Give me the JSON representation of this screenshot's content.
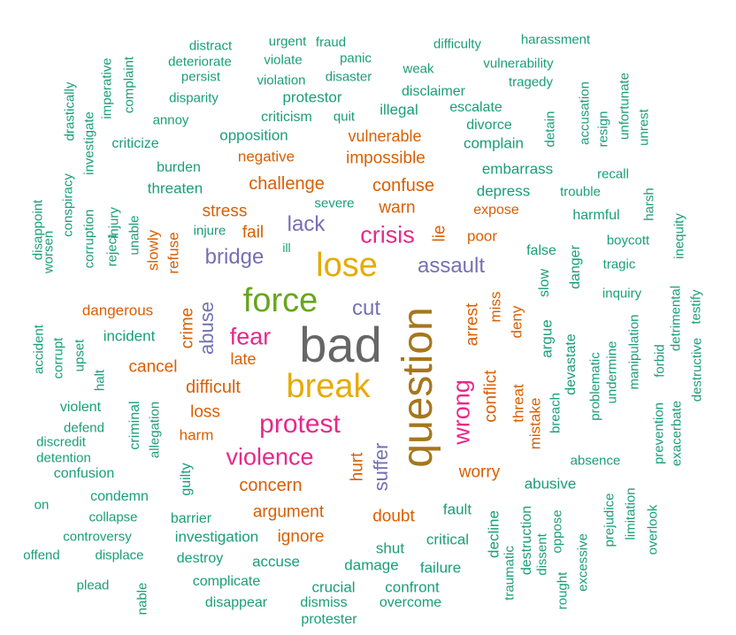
{
  "colors": {
    "green": "#1b9e77",
    "orange": "#d95f02",
    "purple": "#7570b3",
    "pink": "#e7298a",
    "lime": "#66a61e",
    "gold": "#e6ab02",
    "brown": "#a6761d",
    "gray": "#666666"
  },
  "words": [
    {
      "text": "bad",
      "color": "gray"
    },
    {
      "text": "question",
      "color": "brown"
    },
    {
      "text": "break",
      "color": "gold"
    },
    {
      "text": "force",
      "color": "lime"
    },
    {
      "text": "lose",
      "color": "gold"
    },
    {
      "text": "protest",
      "color": "pink"
    },
    {
      "text": "violence",
      "color": "pink"
    },
    {
      "text": "crisis",
      "color": "pink"
    },
    {
      "text": "fear",
      "color": "pink"
    },
    {
      "text": "wrong",
      "color": "pink"
    },
    {
      "text": "assault",
      "color": "purple"
    },
    {
      "text": "lack",
      "color": "purple"
    },
    {
      "text": "bridge",
      "color": "purple"
    },
    {
      "text": "cut",
      "color": "purple"
    },
    {
      "text": "abuse",
      "color": "purple"
    },
    {
      "text": "suffer",
      "color": "purple"
    },
    {
      "text": "lie",
      "color": "orange"
    },
    {
      "text": "arrest",
      "color": "orange"
    },
    {
      "text": "conflict",
      "color": "orange"
    },
    {
      "text": "hurt",
      "color": "orange"
    },
    {
      "text": "challenge",
      "color": "orange"
    },
    {
      "text": "confuse",
      "color": "orange"
    },
    {
      "text": "concern",
      "color": "orange"
    },
    {
      "text": "argument",
      "color": "orange"
    },
    {
      "text": "difficult",
      "color": "orange"
    },
    {
      "text": "worry",
      "color": "orange"
    },
    {
      "text": "doubt",
      "color": "orange"
    },
    {
      "text": "ignore",
      "color": "orange"
    },
    {
      "text": "loss",
      "color": "orange"
    },
    {
      "text": "crime",
      "color": "orange"
    },
    {
      "text": "miss",
      "color": "orange"
    },
    {
      "text": "deny",
      "color": "orange"
    },
    {
      "text": "threat",
      "color": "orange"
    },
    {
      "text": "mistake",
      "color": "orange"
    },
    {
      "text": "warn",
      "color": "orange"
    },
    {
      "text": "stress",
      "color": "orange"
    },
    {
      "text": "fail",
      "color": "orange"
    },
    {
      "text": "poor",
      "color": "orange"
    },
    {
      "text": "refuse",
      "color": "orange"
    },
    {
      "text": "slowly",
      "color": "orange"
    },
    {
      "text": "expose",
      "color": "orange"
    },
    {
      "text": "negative",
      "color": "orange"
    },
    {
      "text": "impossible",
      "color": "orange"
    },
    {
      "text": "vulnerable",
      "color": "orange"
    },
    {
      "text": "dangerous",
      "color": "orange"
    },
    {
      "text": "cancel",
      "color": "orange"
    },
    {
      "text": "late",
      "color": "orange"
    },
    {
      "text": "harm",
      "color": "orange"
    },
    {
      "text": "distract",
      "color": "green"
    },
    {
      "text": "urgent",
      "color": "green"
    },
    {
      "text": "fraud",
      "color": "green"
    },
    {
      "text": "difficulty",
      "color": "green"
    },
    {
      "text": "harassment",
      "color": "green"
    },
    {
      "text": "deteriorate",
      "color": "green"
    },
    {
      "text": "violate",
      "color": "green"
    },
    {
      "text": "panic",
      "color": "green"
    },
    {
      "text": "weak",
      "color": "green"
    },
    {
      "text": "vulnerability",
      "color": "green"
    },
    {
      "text": "persist",
      "color": "green"
    },
    {
      "text": "violation",
      "color": "green"
    },
    {
      "text": "disaster",
      "color": "green"
    },
    {
      "text": "tragedy",
      "color": "green"
    },
    {
      "text": "imperative",
      "color": "green"
    },
    {
      "text": "complaint",
      "color": "green"
    },
    {
      "text": "disparity",
      "color": "green"
    },
    {
      "text": "protestor",
      "color": "green"
    },
    {
      "text": "disclaimer",
      "color": "green"
    },
    {
      "text": "drastically",
      "color": "green"
    },
    {
      "text": "annoy",
      "color": "green"
    },
    {
      "text": "criticism",
      "color": "green"
    },
    {
      "text": "quit",
      "color": "green"
    },
    {
      "text": "illegal",
      "color": "green"
    },
    {
      "text": "escalate",
      "color": "green"
    },
    {
      "text": "accusation",
      "color": "green"
    },
    {
      "text": "unfortunate",
      "color": "green"
    },
    {
      "text": "investigate",
      "color": "green"
    },
    {
      "text": "divorce",
      "color": "green"
    },
    {
      "text": "detain",
      "color": "green"
    },
    {
      "text": "resign",
      "color": "green"
    },
    {
      "text": "unrest",
      "color": "green"
    },
    {
      "text": "criticize",
      "color": "green"
    },
    {
      "text": "opposition",
      "color": "green"
    },
    {
      "text": "complain",
      "color": "green"
    },
    {
      "text": "burden",
      "color": "green"
    },
    {
      "text": "embarrass",
      "color": "green"
    },
    {
      "text": "recall",
      "color": "green"
    },
    {
      "text": "conspiracy",
      "color": "green"
    },
    {
      "text": "threaten",
      "color": "green"
    },
    {
      "text": "depress",
      "color": "green"
    },
    {
      "text": "trouble",
      "color": "green"
    },
    {
      "text": "severe",
      "color": "green"
    },
    {
      "text": "harsh",
      "color": "green"
    },
    {
      "text": "disappoint",
      "color": "green"
    },
    {
      "text": "worsen",
      "color": "green"
    },
    {
      "text": "corruption",
      "color": "green"
    },
    {
      "text": "reject",
      "color": "green"
    },
    {
      "text": "injury",
      "color": "green"
    },
    {
      "text": "unable",
      "color": "green"
    },
    {
      "text": "injure",
      "color": "green"
    },
    {
      "text": "harmful",
      "color": "green"
    },
    {
      "text": "inequity",
      "color": "green"
    },
    {
      "text": "ill",
      "color": "green"
    },
    {
      "text": "boycott",
      "color": "green"
    },
    {
      "text": "false",
      "color": "green"
    },
    {
      "text": "tragic",
      "color": "green"
    },
    {
      "text": "danger",
      "color": "green"
    },
    {
      "text": "slow",
      "color": "green"
    },
    {
      "text": "inquiry",
      "color": "green"
    },
    {
      "text": "detrimental",
      "color": "green"
    },
    {
      "text": "testify",
      "color": "green"
    },
    {
      "text": "incident",
      "color": "green"
    },
    {
      "text": "accident",
      "color": "green"
    },
    {
      "text": "corrupt",
      "color": "green"
    },
    {
      "text": "upset",
      "color": "green"
    },
    {
      "text": "argue",
      "color": "green"
    },
    {
      "text": "devastate",
      "color": "green"
    },
    {
      "text": "undermine",
      "color": "green"
    },
    {
      "text": "manipulation",
      "color": "green"
    },
    {
      "text": "forbid",
      "color": "green"
    },
    {
      "text": "destructive",
      "color": "green"
    },
    {
      "text": "halt",
      "color": "green"
    },
    {
      "text": "breach",
      "color": "green"
    },
    {
      "text": "problematic",
      "color": "green"
    },
    {
      "text": "violent",
      "color": "green"
    },
    {
      "text": "defend",
      "color": "green"
    },
    {
      "text": "discredit",
      "color": "green"
    },
    {
      "text": "criminal",
      "color": "green"
    },
    {
      "text": "allegation",
      "color": "green"
    },
    {
      "text": "prevention",
      "color": "green"
    },
    {
      "text": "exacerbate",
      "color": "green"
    },
    {
      "text": "detention",
      "color": "green"
    },
    {
      "text": "confusion",
      "color": "green"
    },
    {
      "text": "guilty",
      "color": "green"
    },
    {
      "text": "absence",
      "color": "green"
    },
    {
      "text": "abusive",
      "color": "green"
    },
    {
      "text": "condemn",
      "color": "green"
    },
    {
      "text": "on",
      "color": "green"
    },
    {
      "text": "collapse",
      "color": "green"
    },
    {
      "text": "barrier",
      "color": "green"
    },
    {
      "text": "fault",
      "color": "green"
    },
    {
      "text": "prejudice",
      "color": "green"
    },
    {
      "text": "limitation",
      "color": "green"
    },
    {
      "text": "overlook",
      "color": "green"
    },
    {
      "text": "decline",
      "color": "green"
    },
    {
      "text": "controversy",
      "color": "green"
    },
    {
      "text": "investigation",
      "color": "green"
    },
    {
      "text": "critical",
      "color": "green"
    },
    {
      "text": "oppose",
      "color": "green"
    },
    {
      "text": "offend",
      "color": "green"
    },
    {
      "text": "displace",
      "color": "green"
    },
    {
      "text": "destroy",
      "color": "green"
    },
    {
      "text": "accuse",
      "color": "green"
    },
    {
      "text": "damage",
      "color": "green"
    },
    {
      "text": "shut",
      "color": "green"
    },
    {
      "text": "destruction",
      "color": "green"
    },
    {
      "text": "dissent",
      "color": "green"
    },
    {
      "text": "excessive",
      "color": "green"
    },
    {
      "text": "failure",
      "color": "green"
    },
    {
      "text": "traumatic",
      "color": "green"
    },
    {
      "text": "plead",
      "color": "green"
    },
    {
      "text": "complicate",
      "color": "green"
    },
    {
      "text": "crucial",
      "color": "green"
    },
    {
      "text": "confront",
      "color": "green"
    },
    {
      "text": "rought",
      "color": "green"
    },
    {
      "text": "nable",
      "color": "green"
    },
    {
      "text": "disappear",
      "color": "green"
    },
    {
      "text": "dismiss",
      "color": "green"
    },
    {
      "text": "overcome",
      "color": "green"
    },
    {
      "text": "protester",
      "color": "green"
    }
  ]
}
